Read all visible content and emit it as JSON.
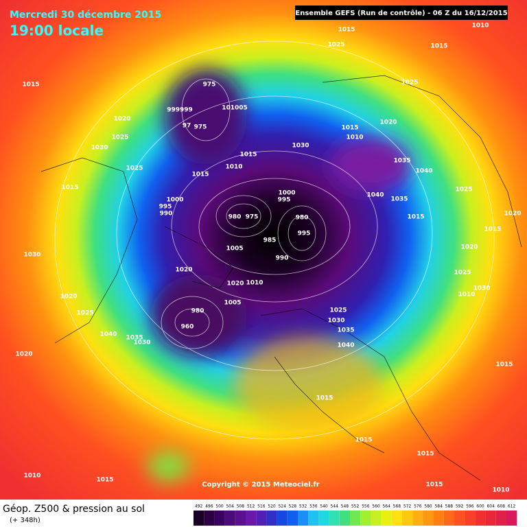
{
  "header": {
    "date": "Mercredi 30 décembre 2015",
    "time": "19:00 locale",
    "run": "Ensemble GEFS  (Run de contrôle)  - 06 Z du 16/12/2015"
  },
  "map": {
    "copyright": "Copyright © 2015 Meteociel.fr",
    "pressure_labels": [
      "1015",
      "1010",
      "1025",
      "1015",
      "1015",
      "1025",
      "975",
      "999999",
      "101005",
      "97",
      "975",
      "1020",
      "1025",
      "1030",
      "1015",
      "1010",
      "1020",
      "1030",
      "1015",
      "1025",
      "1010",
      "1015",
      "1035",
      "1040",
      "1015",
      "1000",
      "995",
      "1040",
      "1035",
      "1025",
      "1000",
      "995",
      "990",
      "980",
      "975",
      "980",
      "995",
      "1015",
      "1020",
      "1015",
      "985",
      "1005",
      "990",
      "1020",
      "1030",
      "1020",
      "1025",
      "1030",
      "1010",
      "1020",
      "1010",
      "1020",
      "1005",
      "980",
      "1025",
      "1025",
      "1030",
      "960",
      "1035",
      "1040",
      "1035",
      "1030",
      "1040",
      "1015",
      "1020",
      "1015",
      "1015",
      "1015",
      "1010",
      "1015",
      "1015",
      "1010"
    ]
  },
  "footer": {
    "title": "Géop. Z500 & pression au sol",
    "lead": "(+ 348h)",
    "color_scale": [
      492,
      496,
      500,
      504,
      508,
      512,
      516,
      520,
      524,
      528,
      532,
      536,
      540,
      544,
      548,
      552,
      556,
      560,
      564,
      568,
      572,
      576,
      580,
      584,
      588,
      592,
      596,
      600,
      604,
      608,
      612
    ]
  }
}
